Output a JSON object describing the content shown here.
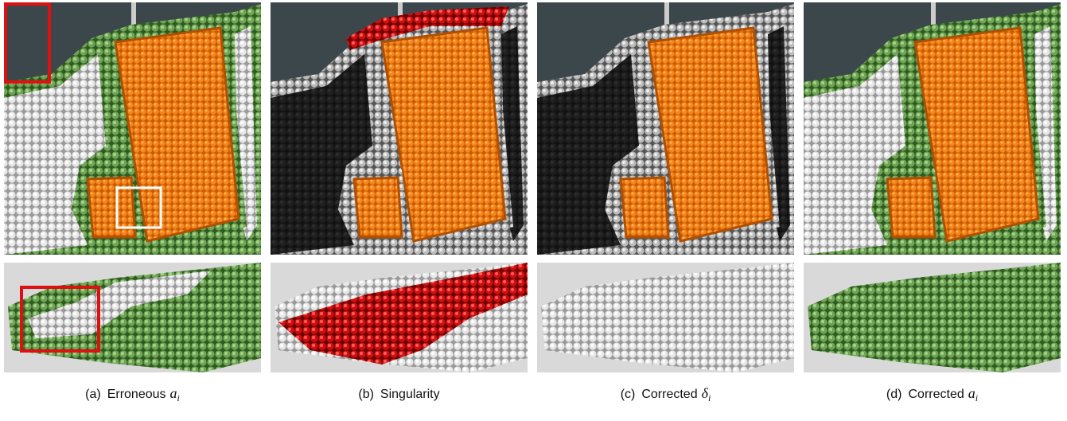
{
  "figure": {
    "panels": [
      {
        "label": "(a)",
        "caption": "Erroneous",
        "symbol": "a",
        "subscript": "i"
      },
      {
        "label": "(b)",
        "caption": "Singularity"
      },
      {
        "label": "(c)",
        "caption": "Corrected",
        "symbol": "δ",
        "subscript": "i"
      },
      {
        "label": "(d)",
        "caption": "Corrected",
        "symbol": "a",
        "subscript": "i"
      }
    ]
  }
}
